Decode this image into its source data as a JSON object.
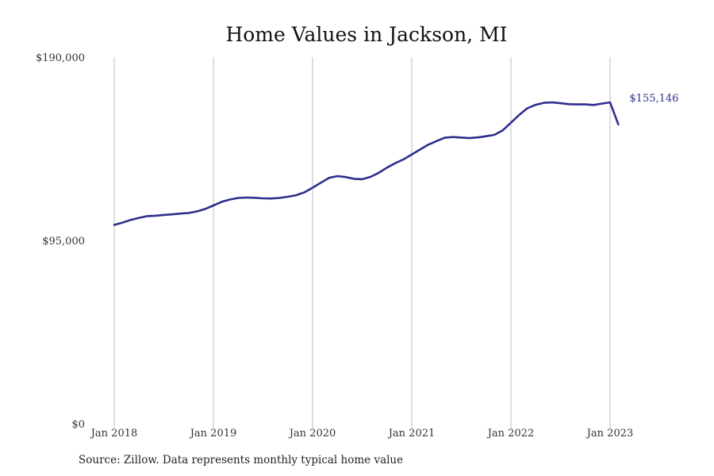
{
  "chart_data": {
    "type": "line",
    "title": "Home Values in Jackson, MI",
    "xlabel": "",
    "ylabel": "",
    "ylim": [
      0,
      190000
    ],
    "y_ticks": [
      {
        "value": 0,
        "label": "$0"
      },
      {
        "value": 95000,
        "label": "$95,000"
      },
      {
        "value": 190000,
        "label": "$190,000"
      }
    ],
    "x_ticks": [
      {
        "value": "2018-01",
        "label": "Jan 2018"
      },
      {
        "value": "2019-01",
        "label": "Jan 2019"
      },
      {
        "value": "2020-01",
        "label": "Jan 2020"
      },
      {
        "value": "2021-01",
        "label": "Jan 2021"
      },
      {
        "value": "2022-01",
        "label": "Jan 2022"
      },
      {
        "value": "2023-01",
        "label": "Jan 2023"
      }
    ],
    "xlim": [
      "2018-01",
      "2023-07"
    ],
    "grid": {
      "vertical": true,
      "horizontal": false
    },
    "line_color": "#2e2e8c",
    "end_label": "$155,146",
    "series": [
      {
        "x": [
          "2018-01",
          "2018-02",
          "2018-03",
          "2018-04",
          "2018-05",
          "2018-06",
          "2018-07",
          "2018-08",
          "2018-09",
          "2018-10",
          "2018-11",
          "2018-12",
          "2019-01",
          "2019-02",
          "2019-03",
          "2019-04",
          "2019-05",
          "2019-06",
          "2019-07",
          "2019-08",
          "2019-09",
          "2019-10",
          "2019-11",
          "2019-12",
          "2020-01",
          "2020-02",
          "2020-03",
          "2020-04",
          "2020-05",
          "2020-06",
          "2020-07",
          "2020-08",
          "2020-09",
          "2020-10",
          "2020-11",
          "2020-12",
          "2021-01",
          "2021-02",
          "2021-03",
          "2021-04",
          "2021-05",
          "2021-06",
          "2021-07",
          "2021-08",
          "2021-09",
          "2021-10",
          "2021-11",
          "2021-12",
          "2022-01",
          "2022-02",
          "2022-03",
          "2022-04",
          "2022-05",
          "2022-06",
          "2022-07",
          "2022-08",
          "2022-09",
          "2022-10",
          "2022-11",
          "2022-12",
          "2023-01",
          "2023-02"
        ],
        "y": [
          103000,
          104200,
          105600,
          106700,
          107600,
          107800,
          108200,
          108500,
          108900,
          109200,
          110000,
          111300,
          113100,
          115000,
          116200,
          117000,
          117200,
          117100,
          116800,
          116700,
          117000,
          117600,
          118400,
          119900,
          122300,
          124900,
          127400,
          128300,
          127800,
          126900,
          126700,
          127900,
          130000,
          132700,
          135000,
          137000,
          139500,
          142100,
          144600,
          146500,
          148200,
          148600,
          148300,
          148000,
          148400,
          149000,
          149700,
          152000,
          156000,
          160000,
          163500,
          165300,
          166300,
          166500,
          166100,
          165600,
          165500,
          165500,
          165200,
          165900,
          166500,
          155146
        ]
      }
    ],
    "source_note": "Source: Zillow. Data represents monthly typical home value"
  }
}
